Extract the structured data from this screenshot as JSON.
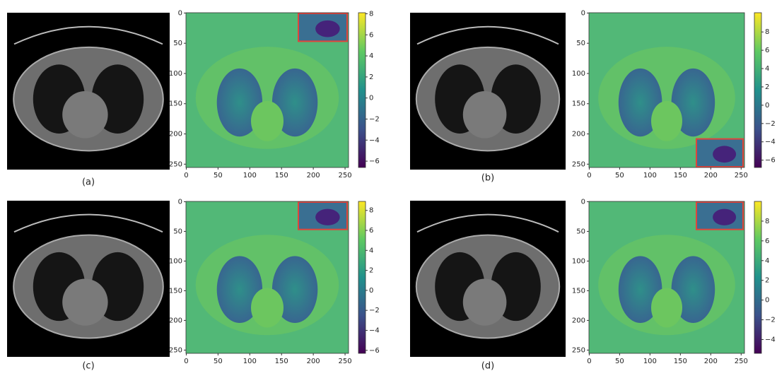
{
  "panels": [
    {
      "label": "(a)",
      "heatmap": {
        "xlim": [
          -0.5,
          255.5
        ],
        "ylim": [
          255.5,
          -0.5
        ],
        "xticks": [
          0,
          50,
          100,
          150,
          200,
          250
        ],
        "yticks": [
          0,
          50,
          100,
          150,
          200,
          250
        ]
      },
      "colorbar": {
        "clim": [
          -6.6,
          8.1
        ],
        "ticks": [
          8,
          6,
          4,
          2,
          0,
          {
            "value": -2,
            "label": "−2"
          },
          {
            "value": -4,
            "label": "−4"
          },
          {
            "value": -6,
            "label": "−6"
          }
        ]
      }
    },
    {
      "label": "(b)",
      "heatmap": {
        "xlim": [
          -0.5,
          255.5
        ],
        "ylim": [
          255.5,
          -0.5
        ],
        "xticks": [
          0,
          50,
          100,
          150,
          200,
          250
        ],
        "yticks": [
          0,
          50,
          100,
          150,
          200,
          250
        ]
      },
      "colorbar": {
        "clim": [
          -6.8,
          10.1
        ],
        "ticks": [
          8,
          6,
          4,
          2,
          0,
          {
            "value": -2,
            "label": "−2"
          },
          {
            "value": -4,
            "label": "−4"
          },
          {
            "value": -6,
            "label": "−6"
          }
        ]
      }
    },
    {
      "label": "(c)",
      "heatmap": {
        "xlim": [
          -0.5,
          255.5
        ],
        "ylim": [
          255.5,
          -0.5
        ],
        "xticks": [
          0,
          50,
          100,
          150,
          200,
          250
        ],
        "yticks": [
          0,
          50,
          100,
          150,
          200,
          250
        ]
      },
      "colorbar": {
        "clim": [
          -6.3,
          8.9
        ],
        "ticks": [
          8,
          6,
          4,
          2,
          0,
          {
            "value": -2,
            "label": "−2"
          },
          {
            "value": -4,
            "label": "−4"
          },
          {
            "value": -6,
            "label": "−6"
          }
        ]
      }
    },
    {
      "label": "(d)",
      "heatmap": {
        "xlim": [
          -0.5,
          255.5
        ],
        "ylim": [
          255.5,
          -0.5
        ],
        "xticks": [
          0,
          50,
          100,
          150,
          200,
          250
        ],
        "yticks": [
          0,
          50,
          100,
          150,
          200,
          250
        ]
      },
      "colorbar": {
        "clim": [
          -5.4,
          10
        ],
        "ticks": [
          8,
          6,
          4,
          2,
          0,
          {
            "value": -2,
            "label": "−2"
          },
          {
            "value": -4,
            "label": "−4"
          }
        ]
      }
    }
  ]
}
